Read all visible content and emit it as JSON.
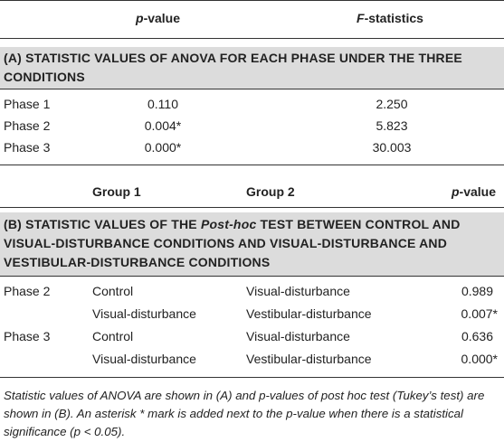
{
  "table_a": {
    "headers": {
      "pvalue_italic": "p",
      "pvalue_rest": "-value",
      "f_italic": "F",
      "f_rest": "-statistics"
    },
    "section_title_line1": "(A) STATISTIC VALUES OF ANOVA FOR EACH PHASE UNDER THE THREE",
    "section_title_line2": "CONDITIONS",
    "rows": [
      {
        "phase": "Phase 1",
        "p": "0.110",
        "f": "2.250"
      },
      {
        "phase": "Phase 2",
        "p": "0.004*",
        "f": "5.823"
      },
      {
        "phase": "Phase 3",
        "p": "0.000*",
        "f": "30.003"
      }
    ]
  },
  "table_b": {
    "headers": {
      "group1": "Group 1",
      "group2": "Group 2",
      "pvalue_italic": "p",
      "pvalue_rest": "-value"
    },
    "section_title_line1_pre": "(B) STATISTIC VALUES OF THE ",
    "section_title_line1_italic": "Post-hoc",
    "section_title_line1_post": " TEST BETWEEN CONTROL AND",
    "section_title_line2": "VISUAL-DISTURBANCE CONDITIONS AND VISUAL-DISTURBANCE AND",
    "section_title_line3": "VESTIBULAR-DISTURBANCE CONDITIONS",
    "rows": [
      {
        "phase": "Phase 2",
        "group1": "Control",
        "group2": "Visual-disturbance",
        "p": "0.989"
      },
      {
        "phase": "",
        "group1": "Visual-disturbance",
        "group2": "Vestibular-disturbance",
        "p": "0.007*"
      },
      {
        "phase": "Phase 3",
        "group1": "Control",
        "group2": "Visual-disturbance",
        "p": "0.636"
      },
      {
        "phase": "",
        "group1": "Visual-disturbance",
        "group2": "Vestibular-disturbance",
        "p": "0.000*"
      }
    ]
  },
  "caption": "Statistic values of ANOVA are shown in (A) and p-values of post hoc test (Tukey’s test) are shown in (B). An asterisk * mark is added next to the p-value when there is a statistical significance (p < 0.05)."
}
